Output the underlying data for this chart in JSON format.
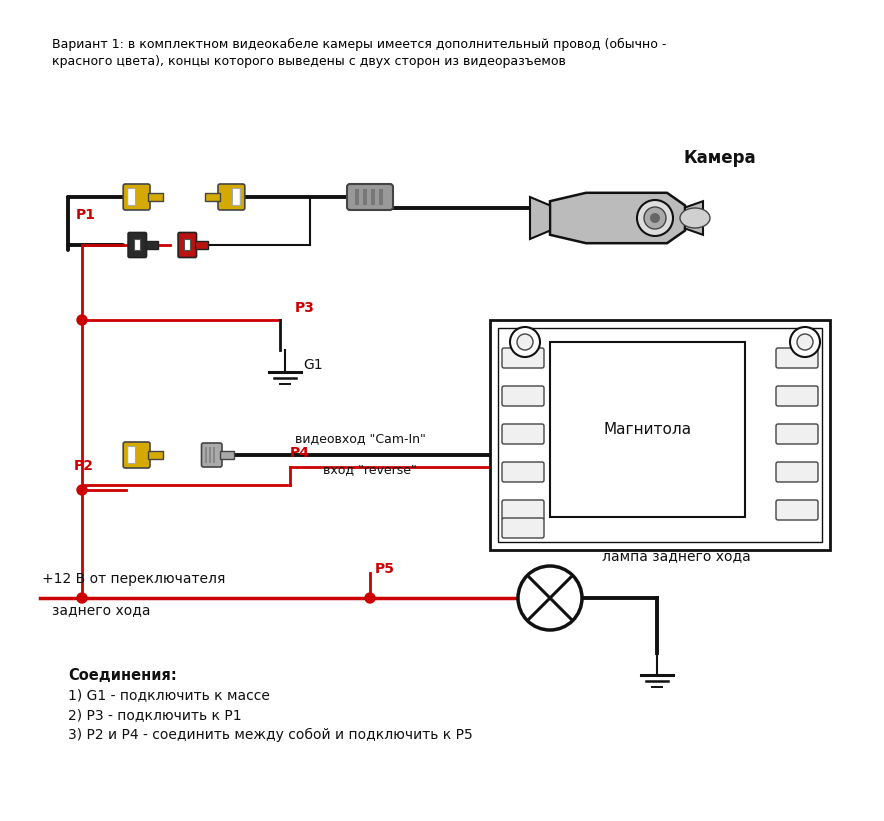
{
  "bg_color": "#ffffff",
  "title_line1": "Вариант 1: в комплектном видеокабеле камеры имеется дополнительный провод (обычно -",
  "title_line2": "красного цвета), концы которого выведены с двух сторон из видеоразъемов",
  "camera_label": "Камера",
  "magnitola_label": "Магнитола",
  "lampa_label": "лампа заднего хода",
  "plus12_line1": "+12 В от переключателя",
  "plus12_line2": "заднего хода",
  "videovhod_label": "видеовход \"Cam-In\"",
  "vhod_reverse_label": "вход \"reverse\"",
  "connections_title": "Соединения:",
  "conn1": "1) G1 - подключить к массе",
  "conn2": "2) Р3 - подключить к Р1",
  "conn3": "3) Р2 и Р4 - соединить между собой и подключить к Р5",
  "P1_label": "P1",
  "P2_label": "P2",
  "P3_label": "P3",
  "P4_label": "P4",
  "P5_label": "P5",
  "G1_label": "G1",
  "black": "#111111",
  "red": "#cc0000",
  "yellow": "#d4aa00",
  "dark_gray": "#444444",
  "med_gray": "#888888",
  "light_gray": "#bbbbbb"
}
